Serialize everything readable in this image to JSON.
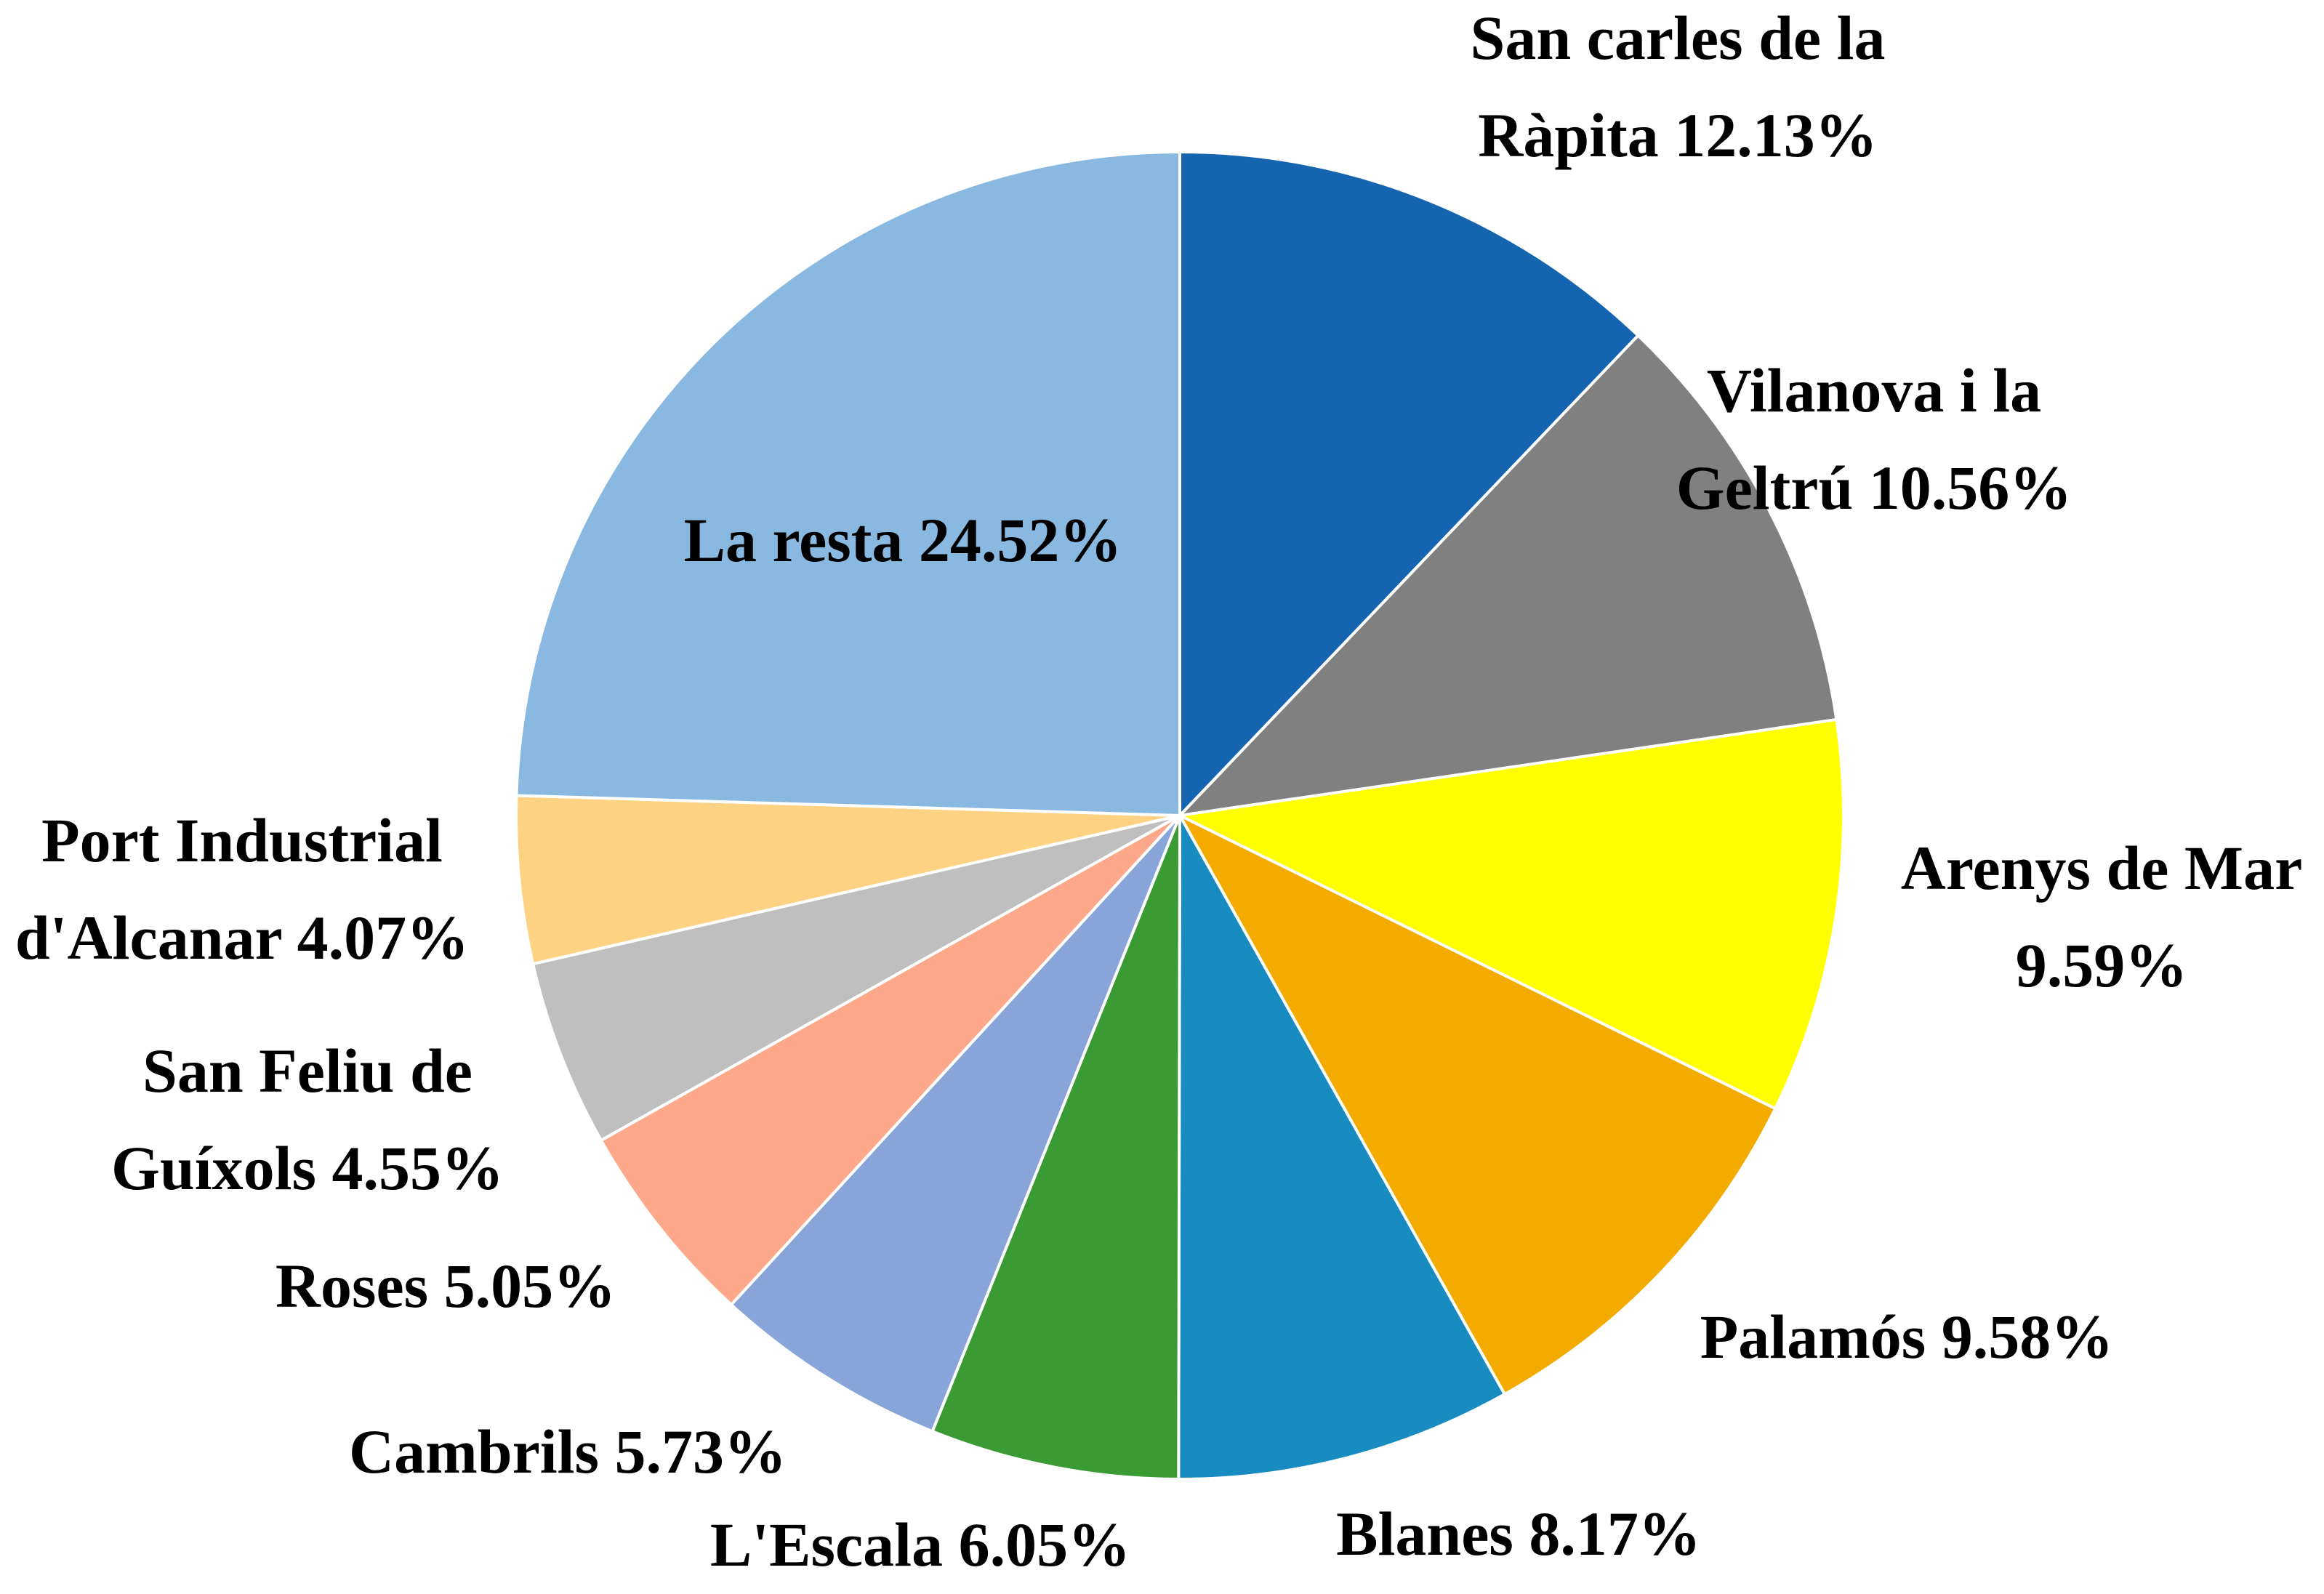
{
  "chart_data": {
    "type": "pie",
    "slices": [
      {
        "name": "San carles de la Ràpita",
        "value": 12.13,
        "label_lines": [
          "San carles de la",
          "Ràpita 12.13%"
        ],
        "color": "#1464B0"
      },
      {
        "name": "Vilanova i la Geltrú",
        "value": 10.56,
        "label_lines": [
          "Vilanova i la",
          "Geltrú 10.56%"
        ],
        "color": "#808080"
      },
      {
        "name": "Arenys de Mar",
        "value": 9.59,
        "label_lines": [
          "Arenys de Mar",
          "9.59%"
        ],
        "color": "#FFFF00"
      },
      {
        "name": "Palamós",
        "value": 9.58,
        "label_lines": [
          "Palamós 9.58%"
        ],
        "color": "#F4AB00"
      },
      {
        "name": "Blanes",
        "value": 8.17,
        "label_lines": [
          "Blanes 8.17%"
        ],
        "color": "#188BC0"
      },
      {
        "name": "L'Escala",
        "value": 6.05,
        "label_lines": [
          "L'Escala 6.05%"
        ],
        "color": "#3A9A33"
      },
      {
        "name": "Cambrils",
        "value": 5.73,
        "label_lines": [
          "Cambrils 5.73%"
        ],
        "color": "#89A4D8"
      },
      {
        "name": "Roses",
        "value": 5.05,
        "label_lines": [
          "Roses 5.05%"
        ],
        "color": "#FDA88A"
      },
      {
        "name": "San Feliu de Guíxols",
        "value": 4.55,
        "label_lines": [
          "San Feliu de",
          "Guíxols 4.55%"
        ],
        "color": "#BFBFBF"
      },
      {
        "name": "Port Industrial d'Alcanar",
        "value": 4.07,
        "label_lines": [
          "Port Industrial",
          "d'Alcanar 4.07%"
        ],
        "color": "#FDD283"
      },
      {
        "name": "La resta",
        "value": 24.52,
        "label_lines": [
          "La resta 24.52%"
        ],
        "color": "#89B8E0"
      }
    ],
    "start_angle": "12 o'clock",
    "direction": "clockwise",
    "legend": "none"
  }
}
